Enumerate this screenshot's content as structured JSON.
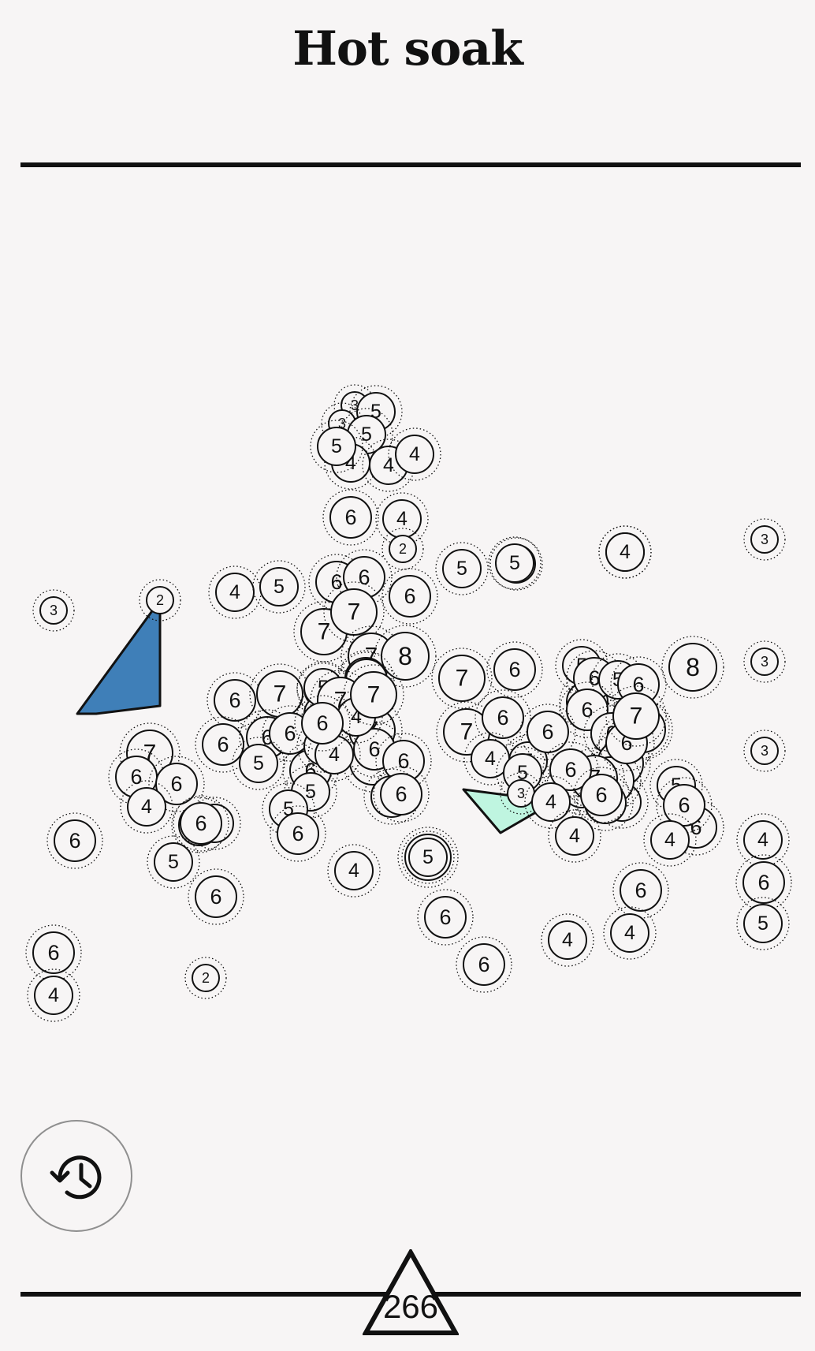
{
  "header": {
    "title": "Hot soak"
  },
  "footer": {
    "score": "266",
    "undo_icon": "history-icon"
  },
  "colors": {
    "background": "#f7f5f5",
    "ink": "#111111",
    "selection_blue": "#3f7fb8",
    "selection_mint": "#bff5e0"
  },
  "nodes": [
    {
      "id": "n1",
      "label": "3"
    },
    {
      "id": "n2",
      "label": "5"
    },
    {
      "id": "n3",
      "label": "3"
    },
    {
      "id": "n4",
      "label": "5"
    },
    {
      "id": "n5",
      "label": "4"
    },
    {
      "id": "n6",
      "label": "4"
    },
    {
      "id": "n7",
      "label": "4"
    },
    {
      "id": "n8",
      "label": "5"
    },
    {
      "id": "n9",
      "label": "6"
    },
    {
      "id": "n10",
      "label": "4"
    },
    {
      "id": "n11",
      "label": "2"
    },
    {
      "id": "n12",
      "label": "5"
    },
    {
      "id": "n13",
      "label": "5"
    },
    {
      "id": "n14",
      "label": "4"
    },
    {
      "id": "n15",
      "label": "3"
    },
    {
      "id": "n16",
      "label": "3"
    },
    {
      "id": "n17",
      "label": "2"
    },
    {
      "id": "n18",
      "label": "4"
    },
    {
      "id": "n19",
      "label": "5"
    },
    {
      "id": "n20",
      "label": "6"
    },
    {
      "id": "n21",
      "label": "6"
    },
    {
      "id": "n22",
      "label": "6"
    },
    {
      "id": "n23",
      "label": "7"
    },
    {
      "id": "n24",
      "label": "7"
    },
    {
      "id": "n25",
      "label": "7"
    },
    {
      "id": "n26",
      "label": "6"
    },
    {
      "id": "n27",
      "label": "8"
    },
    {
      "id": "n28",
      "label": "3"
    },
    {
      "id": "n29",
      "label": "6"
    },
    {
      "id": "n30",
      "label": "7"
    },
    {
      "id": "n31",
      "label": "5"
    },
    {
      "id": "n32",
      "label": "6"
    },
    {
      "id": "n33",
      "label": "5"
    },
    {
      "id": "n34",
      "label": "7"
    },
    {
      "id": "n35",
      "label": "3"
    },
    {
      "id": "n36",
      "label": "4"
    },
    {
      "id": "n37",
      "label": "5"
    },
    {
      "id": "n38",
      "label": "7"
    },
    {
      "id": "n39",
      "label": "6"
    },
    {
      "id": "n40",
      "label": "5"
    },
    {
      "id": "n41",
      "label": "6"
    },
    {
      "id": "n42",
      "label": "8"
    },
    {
      "id": "n43",
      "label": "6"
    },
    {
      "id": "n44",
      "label": "5"
    },
    {
      "id": "n45",
      "label": "6"
    },
    {
      "id": "n46",
      "label": "5"
    },
    {
      "id": "n47",
      "label": "6"
    },
    {
      "id": "n48",
      "label": "7"
    },
    {
      "id": "n49",
      "label": "6"
    },
    {
      "id": "n50",
      "label": "6"
    },
    {
      "id": "n51",
      "label": "5"
    },
    {
      "id": "n52",
      "label": "4"
    },
    {
      "id": "n53",
      "label": "7"
    },
    {
      "id": "n54",
      "label": "7"
    },
    {
      "id": "n55",
      "label": "5"
    },
    {
      "id": "n56",
      "label": "6"
    },
    {
      "id": "n57",
      "label": "7"
    },
    {
      "id": "n58",
      "label": "6"
    },
    {
      "id": "n59",
      "label": "6"
    },
    {
      "id": "n60",
      "label": "6"
    },
    {
      "id": "n61",
      "label": "5"
    },
    {
      "id": "n62",
      "label": "6"
    },
    {
      "id": "n63",
      "label": "7"
    },
    {
      "id": "n64",
      "label": "7"
    },
    {
      "id": "n65",
      "label": "5"
    },
    {
      "id": "n66",
      "label": "7"
    },
    {
      "id": "n67",
      "label": "6"
    },
    {
      "id": "n68",
      "label": "4"
    },
    {
      "id": "n69",
      "label": "4"
    },
    {
      "id": "n70",
      "label": "4"
    },
    {
      "id": "n71",
      "label": "7"
    },
    {
      "id": "n72",
      "label": "6"
    },
    {
      "id": "n73",
      "label": "6"
    },
    {
      "id": "n74",
      "label": "6"
    },
    {
      "id": "n75",
      "label": "6"
    },
    {
      "id": "n76",
      "label": "4"
    },
    {
      "id": "n77",
      "label": "4"
    },
    {
      "id": "n78",
      "label": "5"
    },
    {
      "id": "n79",
      "label": "6"
    },
    {
      "id": "n80",
      "label": "6"
    },
    {
      "id": "n81",
      "label": "5"
    },
    {
      "id": "n82",
      "label": "6"
    },
    {
      "id": "n83",
      "label": "7"
    },
    {
      "id": "n84",
      "label": "4"
    },
    {
      "id": "n85",
      "label": "5"
    },
    {
      "id": "n86",
      "label": "8"
    },
    {
      "id": "n87",
      "label": "7"
    },
    {
      "id": "n88",
      "label": "6"
    },
    {
      "id": "n89",
      "label": "7"
    },
    {
      "id": "n90",
      "label": "6"
    },
    {
      "id": "n91",
      "label": "6"
    },
    {
      "id": "n92",
      "label": "5"
    },
    {
      "id": "n93",
      "label": "6"
    },
    {
      "id": "n94",
      "label": "6"
    },
    {
      "id": "n95",
      "label": "4"
    },
    {
      "id": "n96",
      "label": "6"
    },
    {
      "id": "n97",
      "label": "5"
    },
    {
      "id": "n98",
      "label": "3"
    },
    {
      "id": "n99",
      "label": "6"
    },
    {
      "id": "n100",
      "label": "4"
    },
    {
      "id": "n101",
      "label": "4"
    },
    {
      "id": "n102",
      "label": "4"
    },
    {
      "id": "n103",
      "label": "6"
    },
    {
      "id": "n104",
      "label": "4"
    },
    {
      "id": "n105",
      "label": "6"
    },
    {
      "id": "n106",
      "label": "2"
    },
    {
      "id": "n107",
      "label": "4"
    },
    {
      "id": "n108",
      "label": "6"
    },
    {
      "id": "n109",
      "label": "5"
    },
    {
      "id": "n110",
      "label": "6"
    },
    {
      "id": "n111",
      "label": "6"
    },
    {
      "id": "n112",
      "label": "6"
    },
    {
      "id": "n113",
      "label": "4"
    },
    {
      "id": "n114",
      "label": "5"
    },
    {
      "id": "n115",
      "label": "6"
    },
    {
      "id": "n116",
      "label": "6"
    },
    {
      "id": "n117",
      "label": "4"
    }
  ]
}
